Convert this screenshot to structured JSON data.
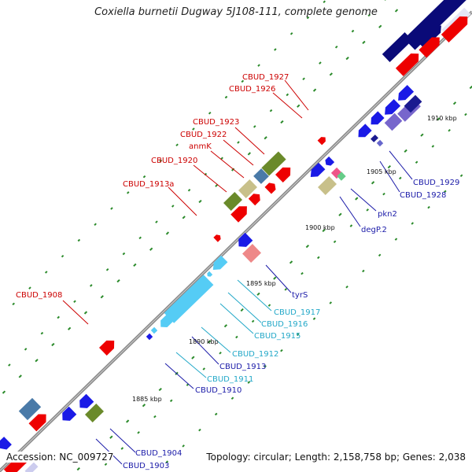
{
  "title": "Coxiella burnetii Dugway 5J108-111, complete genome",
  "accession": "Accession: NC_009727",
  "summary": "Topology: circular; Length: 2,158,758 bp; Genes: 2,038",
  "colors": {
    "backbone": "#8a8a8a",
    "tick": "#2a8a2a",
    "label_red": "#cc0000",
    "label_blue": "#1a1aa8",
    "label_cyan": "#22a8c8"
  },
  "ruler": [
    "1885 kbp",
    "1890 kbp",
    "1895 kbp",
    "1900 kbp",
    "1905 kbp",
    "1910 kbp"
  ],
  "labels": [
    {
      "id": "CBUD_1927",
      "text": "CBUD_1927",
      "color": "red"
    },
    {
      "id": "CBUD_1926",
      "text": "CBUD_1926",
      "color": "red"
    },
    {
      "id": "CBUD_1923",
      "text": "CBUD_1923",
      "color": "red"
    },
    {
      "id": "CBUD_1922",
      "text": "CBUD_1922",
      "color": "red"
    },
    {
      "id": "anmK",
      "text": "anmK",
      "color": "red"
    },
    {
      "id": "CBUD_1920",
      "text": "CBUD_1920",
      "color": "red"
    },
    {
      "id": "CBUD_1913a",
      "text": "CBUD_1913a",
      "color": "red"
    },
    {
      "id": "CBUD_1908",
      "text": "CBUD_1908",
      "color": "red"
    },
    {
      "id": "CBUD_1929",
      "text": "CBUD_1929",
      "color": "blue"
    },
    {
      "id": "CBUD_1928",
      "text": "CBUD_1928",
      "color": "blue"
    },
    {
      "id": "pkn2",
      "text": "pkn2",
      "color": "blue"
    },
    {
      "id": "degP.2",
      "text": "degP.2",
      "color": "blue"
    },
    {
      "id": "tyrS",
      "text": "tyrS",
      "color": "blue"
    },
    {
      "id": "CBUD_1917",
      "text": "CBUD_1917",
      "color": "cyan"
    },
    {
      "id": "CBUD_1916",
      "text": "CBUD_1916",
      "color": "cyan"
    },
    {
      "id": "CBUD_1915",
      "text": "CBUD_1915",
      "color": "cyan"
    },
    {
      "id": "CBUD_1912",
      "text": "CBUD_1912",
      "color": "cyan"
    },
    {
      "id": "CBUD_1913",
      "text": "CBUD_1913",
      "color": "blue"
    },
    {
      "id": "CBUD_1911",
      "text": "CBUD_1911",
      "color": "cyan"
    },
    {
      "id": "CBUD_1910",
      "text": "CBUD_1910",
      "color": "blue"
    },
    {
      "id": "CBUD_1904",
      "text": "CBUD_1904",
      "color": "blue"
    },
    {
      "id": "CBUD_1903",
      "text": "CBUD_1903",
      "color": "blue"
    }
  ]
}
